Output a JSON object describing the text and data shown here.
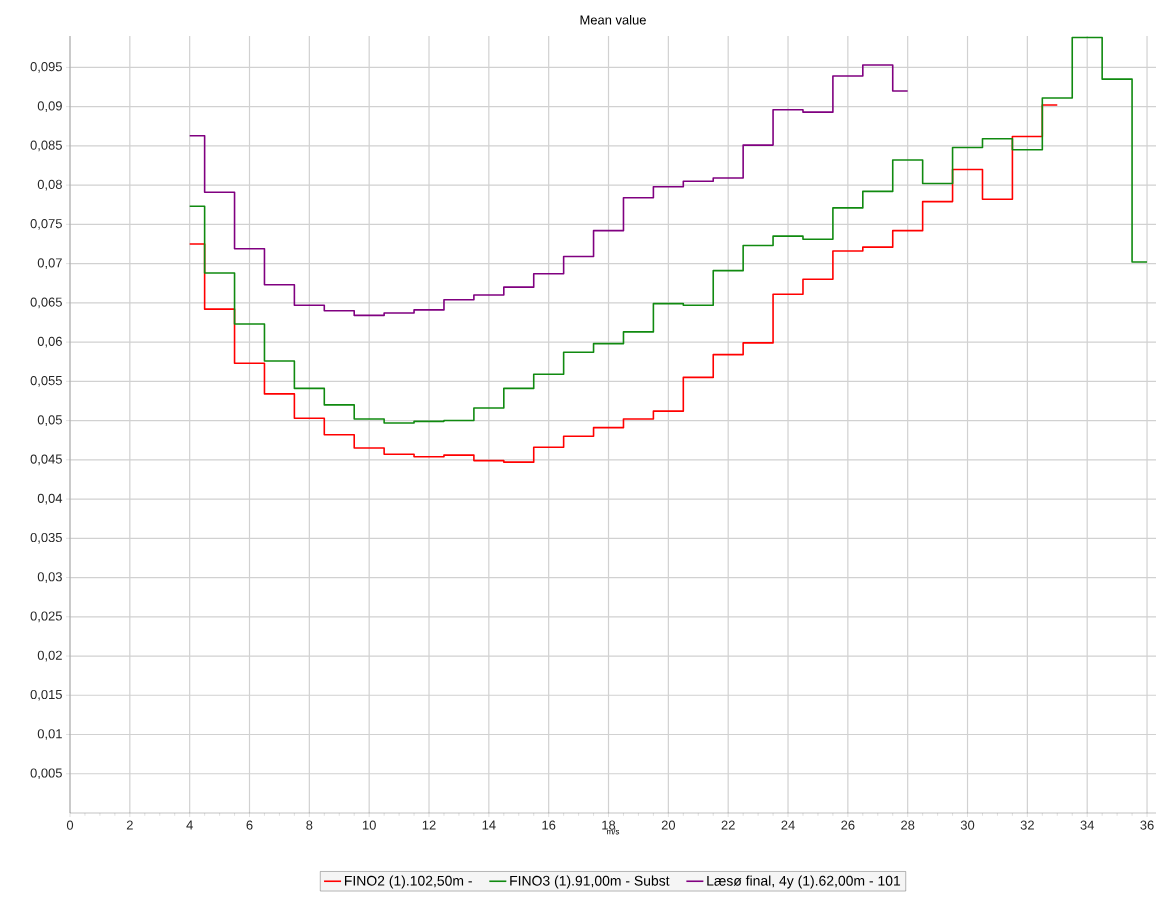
{
  "chart_data": {
    "type": "step",
    "title": "Mean value",
    "xlabel": "m/s",
    "xlim": [
      0,
      36.3
    ],
    "ylim": [
      0,
      0.099
    ],
    "xticks": [
      0,
      2,
      4,
      6,
      8,
      10,
      12,
      14,
      16,
      18,
      20,
      22,
      24,
      26,
      28,
      30,
      32,
      34,
      36
    ],
    "yticks": [
      {
        "value": 0.005,
        "label": "0,005"
      },
      {
        "value": 0.01,
        "label": "0,01"
      },
      {
        "value": 0.015,
        "label": "0,015"
      },
      {
        "value": 0.02,
        "label": "0,02"
      },
      {
        "value": 0.025,
        "label": "0,025"
      },
      {
        "value": 0.03,
        "label": "0,03"
      },
      {
        "value": 0.035,
        "label": "0,035"
      },
      {
        "value": 0.04,
        "label": "0,04"
      },
      {
        "value": 0.045,
        "label": "0,045"
      },
      {
        "value": 0.05,
        "label": "0,05"
      },
      {
        "value": 0.055,
        "label": "0,055"
      },
      {
        "value": 0.06,
        "label": "0,06"
      },
      {
        "value": 0.065,
        "label": "0,065"
      },
      {
        "value": 0.07,
        "label": "0,07"
      },
      {
        "value": 0.075,
        "label": "0,075"
      },
      {
        "value": 0.08,
        "label": "0,08"
      },
      {
        "value": 0.085,
        "label": "0,085"
      },
      {
        "value": 0.09,
        "label": "0,09"
      },
      {
        "value": 0.095,
        "label": "0,095"
      }
    ],
    "grid": true,
    "legend": "bottom",
    "marker": "none",
    "line_style": "solid",
    "series": [
      {
        "name": "FINO2 (1).102,50m -",
        "color": "#ff0000",
        "x": [
          4,
          5,
          6,
          7,
          8,
          9,
          10,
          11,
          12,
          13,
          14,
          15,
          16,
          17,
          18,
          19,
          20,
          21,
          22,
          23,
          24,
          25,
          26,
          27,
          28,
          29,
          30,
          31,
          32,
          33
        ],
        "values": [
          0.0725,
          0.0642,
          0.0573,
          0.0534,
          0.0503,
          0.0482,
          0.0465,
          0.0457,
          0.0454,
          0.0456,
          0.0449,
          0.0447,
          0.0466,
          0.048,
          0.0491,
          0.0502,
          0.0512,
          0.0555,
          0.0584,
          0.0599,
          0.0661,
          0.068,
          0.0716,
          0.0721,
          0.0742,
          0.0779,
          0.082,
          0.0782,
          0.0862,
          0.0902
        ]
      },
      {
        "name": "FINO3 (1).91,00m - Subst",
        "color": "#108a10",
        "x": [
          4,
          5,
          6,
          7,
          8,
          9,
          10,
          11,
          12,
          13,
          14,
          15,
          16,
          17,
          18,
          19,
          20,
          21,
          22,
          23,
          24,
          25,
          26,
          27,
          28,
          29,
          30,
          31,
          32,
          33,
          34,
          35,
          36
        ],
        "values": [
          0.0773,
          0.0688,
          0.0623,
          0.0576,
          0.0541,
          0.052,
          0.0502,
          0.0497,
          0.0499,
          0.05,
          0.0516,
          0.0541,
          0.0559,
          0.0587,
          0.0598,
          0.0613,
          0.0649,
          0.0647,
          0.0691,
          0.0723,
          0.0735,
          0.0731,
          0.0771,
          0.0792,
          0.0832,
          0.0802,
          0.0848,
          0.0859,
          0.0845,
          0.0911,
          0.0988,
          0.0935,
          0.0702
        ]
      },
      {
        "name": "Læsø final, 4y (1).62,00m - 101",
        "color": "#800080",
        "x": [
          4,
          5,
          6,
          7,
          8,
          9,
          10,
          11,
          12,
          13,
          14,
          15,
          16,
          17,
          18,
          19,
          20,
          21,
          22,
          23,
          24,
          25,
          26,
          27,
          28
        ],
        "values": [
          0.0863,
          0.0791,
          0.0719,
          0.0673,
          0.0647,
          0.064,
          0.0634,
          0.0637,
          0.0641,
          0.0654,
          0.066,
          0.067,
          0.0687,
          0.0709,
          0.0742,
          0.0784,
          0.0798,
          0.0805,
          0.0809,
          0.0851,
          0.0896,
          0.0893,
          0.0939,
          0.0953,
          0.092
        ]
      }
    ]
  }
}
